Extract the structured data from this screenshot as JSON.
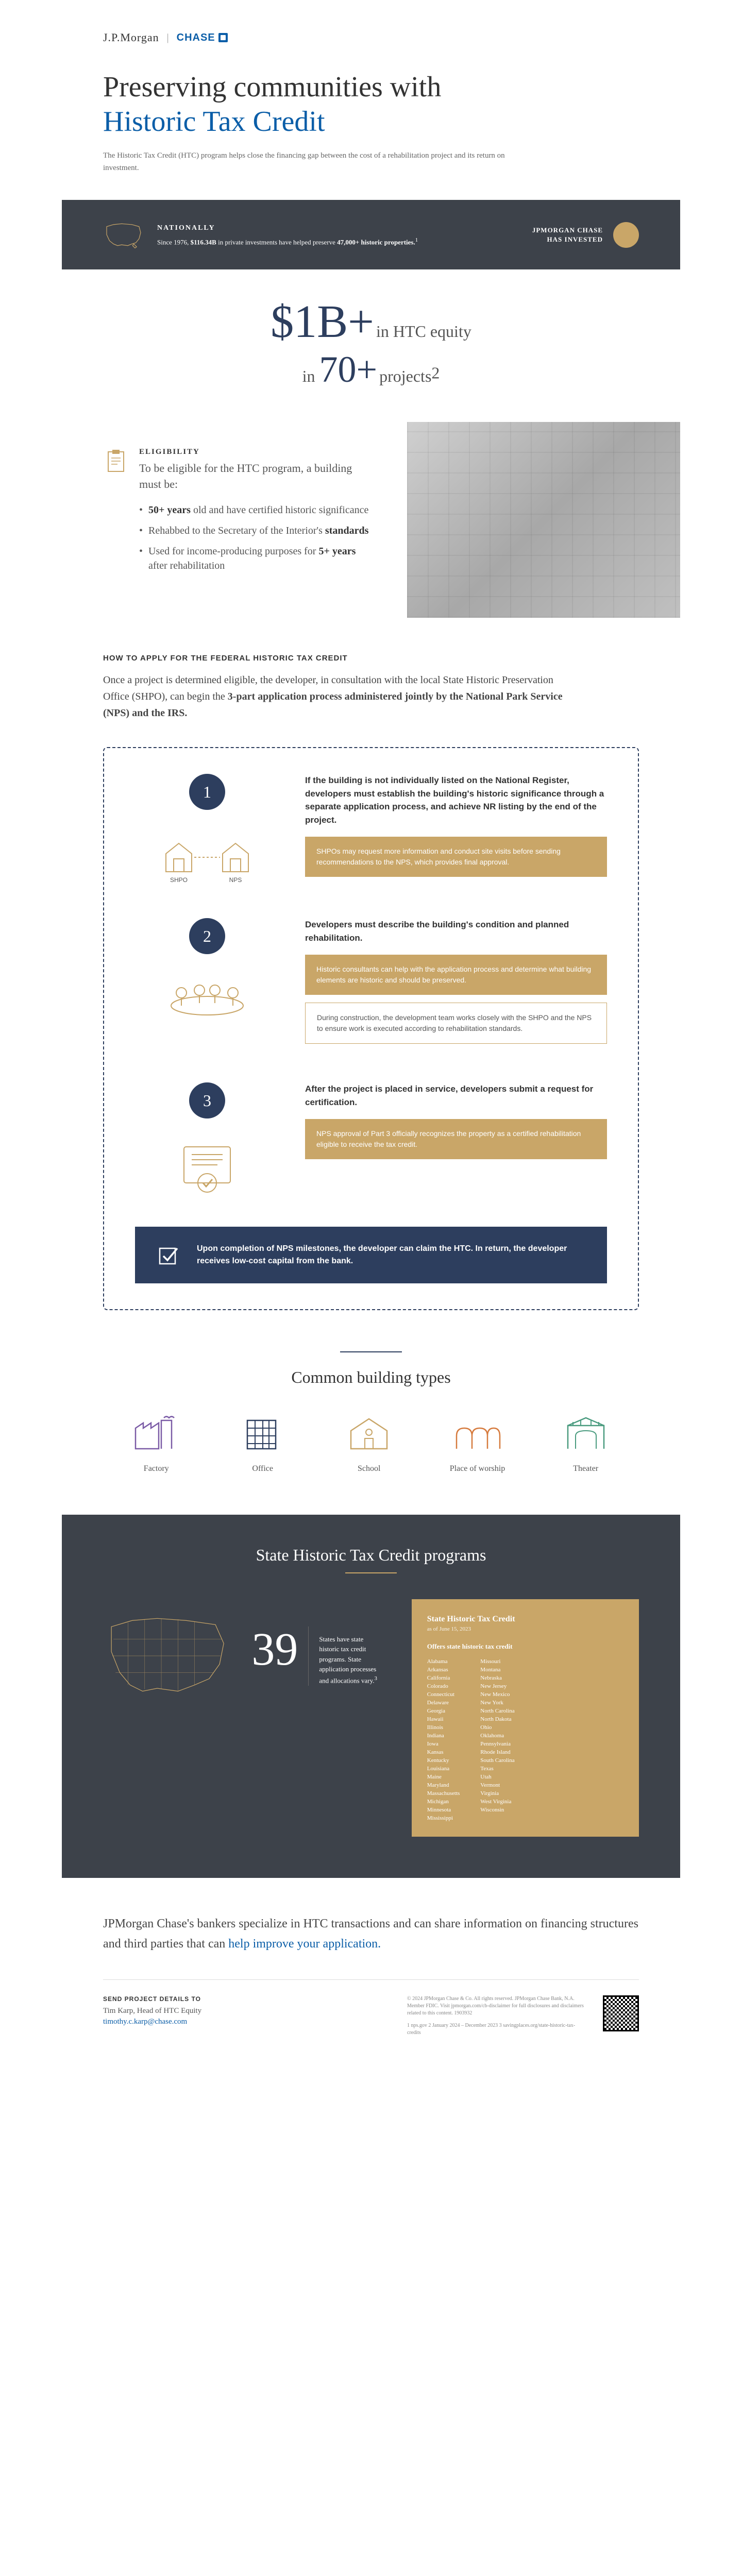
{
  "logo": {
    "jpm": "J.P.Morgan",
    "chase": "CHASE"
  },
  "hero": {
    "title_line1": "Preserving communities with",
    "title_line2": "Historic Tax Credit",
    "intro": "The Historic Tax Credit (HTC) program helps close the financing gap between the cost of a rehabilitation project and its return on investment."
  },
  "dark_band": {
    "nat_title": "NATIONALLY",
    "nat_text_pre": "Since 1976, ",
    "nat_text_bold1": "$116.34B",
    "nat_text_mid": " in private investments have helped preserve ",
    "nat_text_bold2": "47,000+ historic properties.",
    "nat_sup": "1",
    "invest_line1": "JPMORGAN CHASE",
    "invest_line2": "HAS INVESTED"
  },
  "big_stat": {
    "dollar": "$1B+",
    "line1_text": " in HTC equity",
    "line2_pre": "in ",
    "num": "70+",
    "line2_post": " projects",
    "sup": "2"
  },
  "eligibility": {
    "title": "ELIGIBILITY",
    "lead": "To be eligible for the HTC program, a building must be:",
    "items": [
      {
        "bold": "50+ years",
        "rest": " old and have certified historic significance"
      },
      {
        "pre": "Rehabbed to the Secretary of the Interior's ",
        "bold": "standards",
        "rest": ""
      },
      {
        "pre": "Used for income-producing purposes for ",
        "bold": "5+ years",
        "rest": " after rehabilitation"
      }
    ]
  },
  "howto": {
    "title": "HOW TO APPLY FOR THE FEDERAL HISTORIC TAX CREDIT",
    "text_pre": "Once a project is determined eligible, the developer, in consultation with the local State Historic Preservation Office (SHPO), can begin the ",
    "text_bold": "3-part application process administered jointly by the National Park Service (NPS) and the IRS."
  },
  "steps": [
    {
      "num": "1",
      "heading": "If the building is not individually listed on the National Register, developers must establish the building's historic significance through a separate application process, and achieve NR listing by the end of the project.",
      "icon_labels": {
        "left": "SHPO",
        "right": "NPS"
      },
      "boxes": [
        {
          "type": "tan",
          "text": "SHPOs may request more information and conduct site visits before sending recommendations to the NPS, which provides final approval."
        }
      ]
    },
    {
      "num": "2",
      "heading": "Developers must describe the building's condition and planned rehabilitation.",
      "boxes": [
        {
          "type": "tan",
          "text": "Historic consultants can help with the application process and determine what building elements are historic and should be preserved."
        },
        {
          "type": "bordered",
          "text": "During construction, the development team works closely with the SHPO and the NPS to ensure work is executed according to rehabilitation standards."
        }
      ]
    },
    {
      "num": "3",
      "heading": "After the project is placed in service, developers submit a request for certification.",
      "boxes": [
        {
          "type": "tan",
          "text": "NPS approval of Part 3 officially recognizes the property as a certified rehabilitation eligible to receive the tax credit."
        }
      ]
    }
  ],
  "completion": "Upon completion of NPS milestones, the developer can claim the HTC. In return, the developer receives low-cost capital from the bank.",
  "building_types": {
    "title": "Common building types",
    "items": [
      {
        "label": "Factory",
        "color": "#7b5ba6"
      },
      {
        "label": "Office",
        "color": "#2d3e5e"
      },
      {
        "label": "School",
        "color": "#c9a668"
      },
      {
        "label": "Place of worship",
        "color": "#d67b3e"
      },
      {
        "label": "Theater",
        "color": "#4a9b7f"
      }
    ]
  },
  "state_section": {
    "title": "State Historic Tax Credit programs",
    "num": "39",
    "num_text": "States have state historic tax credit programs. State application processes and allocations vary.",
    "num_sup": "3",
    "box_title": "State Historic Tax Credit",
    "box_date": "as of June 15, 2023",
    "box_sub": "Offers state historic tax credit",
    "col1": [
      "Alabama",
      "Arkansas",
      "California",
      "Colorado",
      "Connecticut",
      "Delaware",
      "Georgia",
      "Hawaii",
      "Illinois",
      "Indiana",
      "Iowa",
      "Kansas",
      "Kentucky",
      "Louisiana",
      "Maine",
      "Maryland",
      "Massachusetts",
      "Michigan",
      "Minnesota",
      "Mississippi"
    ],
    "col2": [
      "Missouri",
      "Montana",
      "Nebraska",
      "New Jersey",
      "New Mexico",
      "New York",
      "North Carolina",
      "North Dakota",
      "Ohio",
      "Oklahoma",
      "Pennsylvania",
      "Rhode Island",
      "South Carolina",
      "Texas",
      "Utah",
      "Vermont",
      "Virginia",
      "West Virginia",
      "Wisconsin"
    ]
  },
  "footer": {
    "text_pre": "JPMorgan Chase's bankers specialize in HTC transactions and can share information on financing structures and third parties that can ",
    "text_link": "help improve your application.",
    "contact_title": "SEND PROJECT DETAILS TO",
    "contact_name": "Tim Karp, Head of HTC Equity",
    "contact_email": "timothy.c.karp@chase.com",
    "legal": "© 2024 JPMorgan Chase & Co. All rights reserved. JPMorgan Chase Bank, N.A. Member FDIC. Visit jpmorgan.com/cb-disclaimer for full disclosures and disclaimers related to this content. 1903932",
    "legal2": "1 nps.gov   2 January 2024 – December 2023   3 savingplaces.org/state-historic-tax-credits"
  },
  "colors": {
    "navy": "#2d3e5e",
    "gold": "#c9a668",
    "blue": "#0b5ea8",
    "dark_gray": "#3d424a"
  }
}
